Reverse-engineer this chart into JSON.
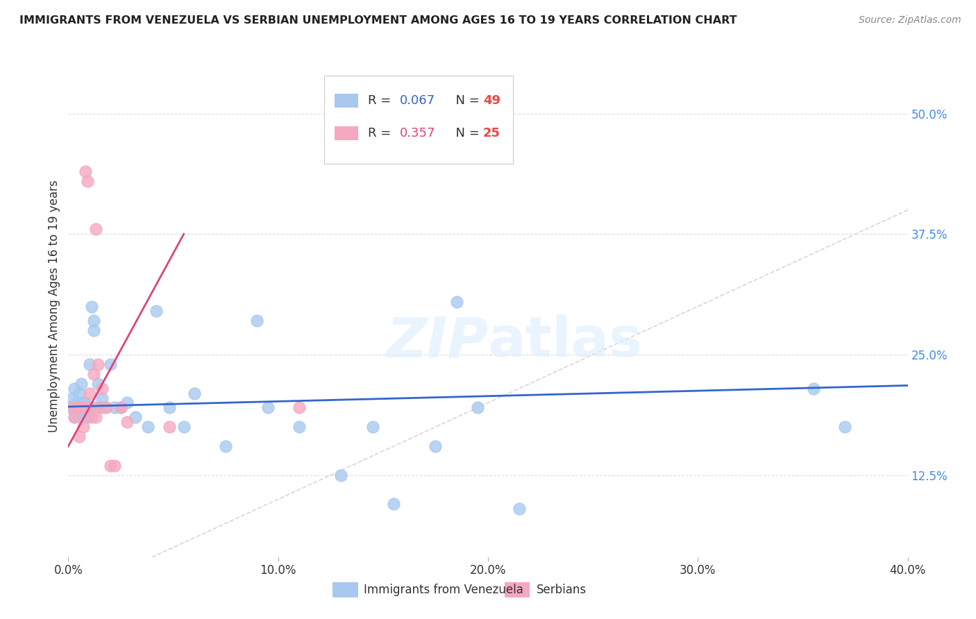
{
  "title": "IMMIGRANTS FROM VENEZUELA VS SERBIAN UNEMPLOYMENT AMONG AGES 16 TO 19 YEARS CORRELATION CHART",
  "source": "Source: ZipAtlas.com",
  "xlabel_ticks": [
    "0.0%",
    "",
    "",
    "",
    "",
    "10.0%",
    "",
    "",
    "",
    "",
    "20.0%",
    "",
    "",
    "",
    "",
    "30.0%",
    "",
    "",
    "",
    "",
    "40.0%"
  ],
  "xlabel_tick_vals": [
    0.0,
    0.02,
    0.04,
    0.06,
    0.08,
    0.1,
    0.12,
    0.14,
    0.16,
    0.18,
    0.2,
    0.22,
    0.24,
    0.26,
    0.28,
    0.3,
    0.32,
    0.34,
    0.36,
    0.38,
    0.4
  ],
  "ylabel_ticks": [
    "12.5%",
    "25.0%",
    "37.5%",
    "50.0%"
  ],
  "ylabel_tick_vals": [
    0.125,
    0.25,
    0.375,
    0.5
  ],
  "xlim": [
    0.0,
    0.4
  ],
  "ylim": [
    0.04,
    0.56
  ],
  "ylabel": "Unemployment Among Ages 16 to 19 years",
  "watermark": "ZIPatlas",
  "legend_blue_r": "R = 0.067",
  "legend_blue_n": "N = 49",
  "legend_pink_r": "R = 0.357",
  "legend_pink_n": "N = 25",
  "legend_blue_label": "Immigrants from Venezuela",
  "legend_pink_label": "Serbians",
  "blue_color": "#A8C8F0",
  "pink_color": "#F5A8C0",
  "blue_line_color": "#3366CC",
  "pink_line_color": "#DD4477",
  "diagonal_color": "#CCCCCC",
  "blue_r_color": "#3366CC",
  "pink_r_color": "#DD4477",
  "n_color_blue": "#EE4444",
  "n_color_pink": "#EE4444",
  "blue_points_x": [
    0.001,
    0.002,
    0.003,
    0.003,
    0.004,
    0.004,
    0.005,
    0.005,
    0.006,
    0.006,
    0.006,
    0.007,
    0.007,
    0.008,
    0.008,
    0.009,
    0.01,
    0.01,
    0.011,
    0.012,
    0.012,
    0.013,
    0.014,
    0.015,
    0.016,
    0.017,
    0.02,
    0.022,
    0.025,
    0.028,
    0.032,
    0.038,
    0.042,
    0.048,
    0.055,
    0.06,
    0.075,
    0.09,
    0.095,
    0.11,
    0.13,
    0.145,
    0.155,
    0.175,
    0.185,
    0.195,
    0.215,
    0.355,
    0.37
  ],
  "blue_points_y": [
    0.195,
    0.205,
    0.185,
    0.215,
    0.195,
    0.2,
    0.195,
    0.21,
    0.185,
    0.22,
    0.195,
    0.2,
    0.185,
    0.195,
    0.2,
    0.185,
    0.24,
    0.195,
    0.3,
    0.285,
    0.275,
    0.195,
    0.22,
    0.195,
    0.205,
    0.195,
    0.24,
    0.195,
    0.195,
    0.2,
    0.185,
    0.175,
    0.295,
    0.195,
    0.175,
    0.21,
    0.155,
    0.285,
    0.195,
    0.175,
    0.125,
    0.175,
    0.095,
    0.155,
    0.305,
    0.195,
    0.09,
    0.215,
    0.175
  ],
  "pink_points_x": [
    0.002,
    0.003,
    0.004,
    0.005,
    0.006,
    0.007,
    0.007,
    0.008,
    0.009,
    0.009,
    0.01,
    0.011,
    0.012,
    0.013,
    0.013,
    0.014,
    0.015,
    0.016,
    0.018,
    0.02,
    0.022,
    0.025,
    0.028,
    0.048,
    0.11
  ],
  "pink_points_y": [
    0.195,
    0.185,
    0.195,
    0.165,
    0.195,
    0.175,
    0.195,
    0.44,
    0.43,
    0.195,
    0.21,
    0.185,
    0.23,
    0.38,
    0.185,
    0.24,
    0.195,
    0.215,
    0.195,
    0.135,
    0.135,
    0.195,
    0.18,
    0.175,
    0.195
  ],
  "background_color": "#FFFFFF",
  "grid_color": "#DDDDDD"
}
